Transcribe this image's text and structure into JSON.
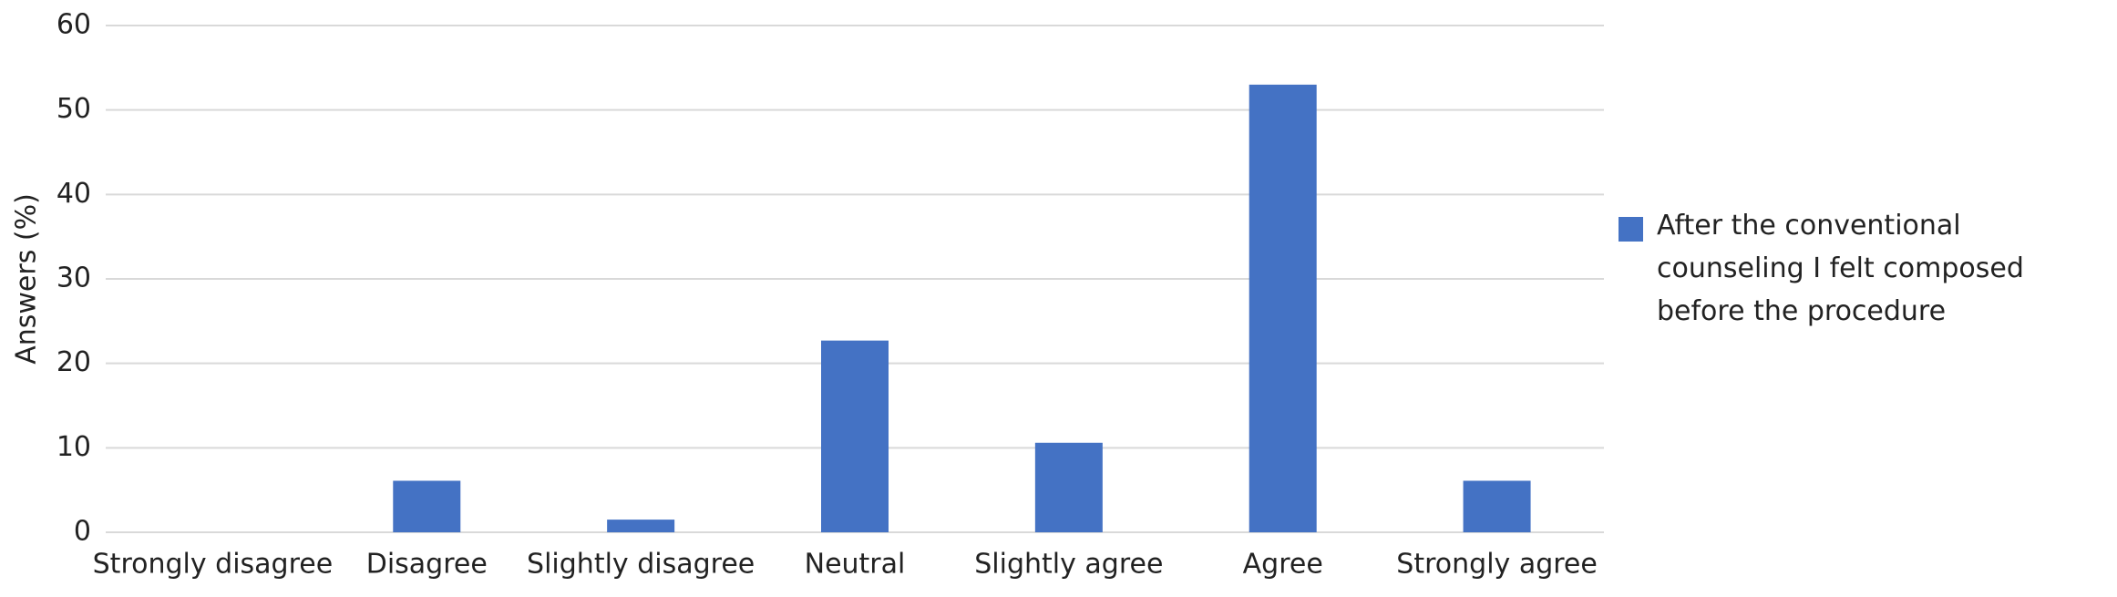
{
  "chart_data": {
    "type": "bar",
    "y_label": "Answers (%)",
    "categories": [
      "Strongly disagree",
      "Disagree",
      "Slightly disagree",
      "Neutral",
      "Slightly agree",
      "Agree",
      "Strongly agree"
    ],
    "series": [
      {
        "name": "After the conventional counseling I felt composed before the procedure",
        "color": "#4472c4",
        "values": [
          0,
          6.1,
          1.5,
          22.7,
          10.6,
          53,
          6.1
        ]
      }
    ],
    "ylim": [
      0,
      60
    ],
    "yticks": [
      0,
      10,
      20,
      30,
      40,
      50,
      60
    ],
    "grid": true,
    "legend": "right"
  }
}
